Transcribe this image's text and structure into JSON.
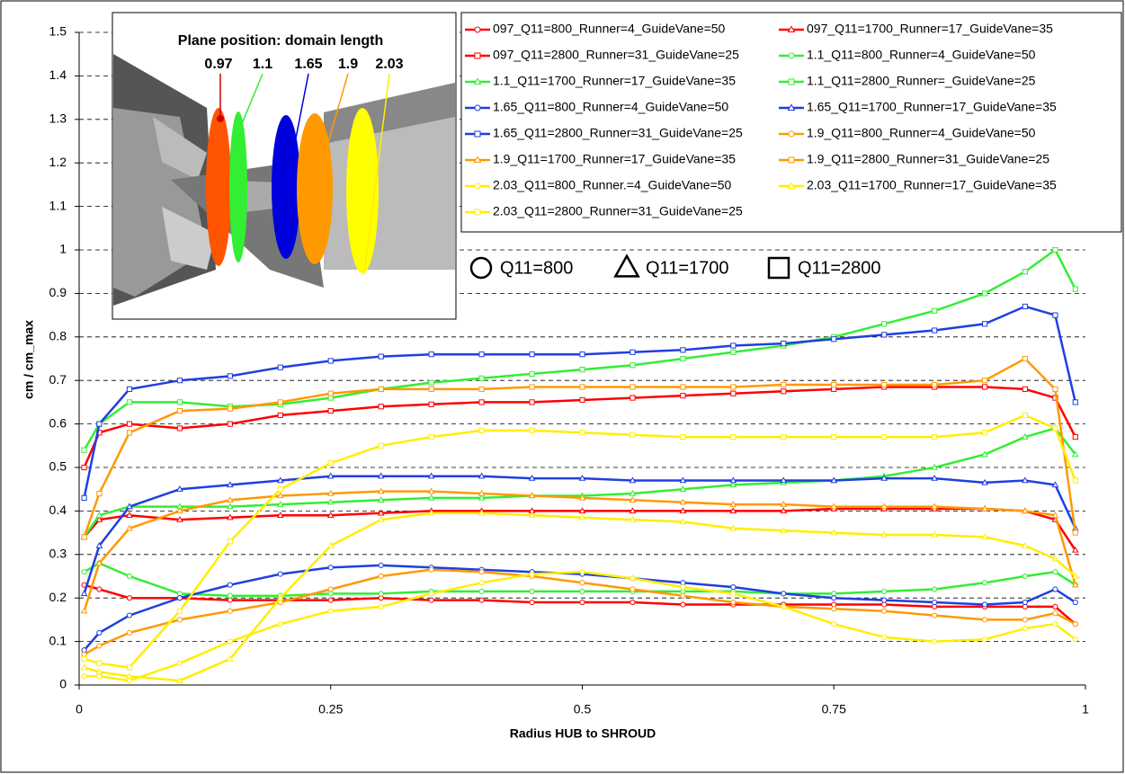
{
  "chart_data": {
    "type": "line",
    "x_label": "Radius HUB to SHROUD",
    "y_label": "cm / cm_max",
    "xlim": [
      0,
      1
    ],
    "xticks": [
      0,
      0.25,
      0.5,
      0.75,
      1
    ],
    "ylim": [
      0,
      1.5
    ],
    "yticks": [
      0,
      0.1,
      0.2,
      0.3,
      0.4,
      0.5,
      0.6,
      0.7,
      0.8,
      0.9,
      1,
      1.1,
      1.2,
      1.3,
      1.4,
      1.5
    ],
    "grid": true,
    "legend": "top-right",
    "x": [
      0.005,
      0.02,
      0.05,
      0.1,
      0.15,
      0.2,
      0.25,
      0.3,
      0.35,
      0.4,
      0.45,
      0.5,
      0.55,
      0.6,
      0.65,
      0.7,
      0.75,
      0.8,
      0.85,
      0.9,
      0.94,
      0.97,
      0.99
    ],
    "series": [
      {
        "name": "097_Q11=800_Runner=4_GuideVane=50",
        "color": "#ff0000",
        "marker": "circle",
        "values": [
          0.23,
          0.22,
          0.2,
          0.2,
          0.195,
          0.195,
          0.195,
          0.2,
          0.195,
          0.195,
          0.19,
          0.19,
          0.19,
          0.185,
          0.185,
          0.185,
          0.185,
          0.185,
          0.18,
          0.18,
          0.18,
          0.18,
          0.14
        ]
      },
      {
        "name": "097_Q11=1700_Runner=17_GuideVane=35",
        "color": "#ff0000",
        "marker": "triangle",
        "values": [
          0.34,
          0.38,
          0.39,
          0.38,
          0.385,
          0.39,
          0.39,
          0.395,
          0.4,
          0.4,
          0.4,
          0.4,
          0.4,
          0.4,
          0.4,
          0.4,
          0.405,
          0.405,
          0.405,
          0.405,
          0.4,
          0.38,
          0.31
        ]
      },
      {
        "name": "097_Q11=2800_Runner=31_GuideVane=25",
        "color": "#ff0000",
        "marker": "square",
        "values": [
          0.5,
          0.58,
          0.6,
          0.59,
          0.6,
          0.62,
          0.63,
          0.64,
          0.645,
          0.65,
          0.65,
          0.655,
          0.66,
          0.665,
          0.67,
          0.675,
          0.68,
          0.685,
          0.685,
          0.685,
          0.68,
          0.66,
          0.57
        ]
      },
      {
        "name": "1.1_Q11=800_Runner=4_GuideVane=50",
        "color": "#33ee33",
        "marker": "circle",
        "values": [
          0.26,
          0.28,
          0.25,
          0.21,
          0.205,
          0.205,
          0.21,
          0.21,
          0.215,
          0.215,
          0.215,
          0.215,
          0.215,
          0.215,
          0.215,
          0.21,
          0.21,
          0.215,
          0.22,
          0.235,
          0.25,
          0.26,
          0.23
        ]
      },
      {
        "name": "1.1_Q11=1700_Runner=17_GuideVane=35",
        "color": "#33ee33",
        "marker": "triangle",
        "values": [
          0.34,
          0.39,
          0.41,
          0.41,
          0.41,
          0.415,
          0.42,
          0.425,
          0.43,
          0.43,
          0.435,
          0.435,
          0.44,
          0.45,
          0.46,
          0.465,
          0.47,
          0.48,
          0.5,
          0.53,
          0.57,
          0.59,
          0.53
        ]
      },
      {
        "name": "1.1_Q11=2800_Runner=_GuideVane=25",
        "color": "#33ee33",
        "marker": "square",
        "values": [
          0.54,
          0.6,
          0.65,
          0.65,
          0.64,
          0.645,
          0.66,
          0.68,
          0.695,
          0.705,
          0.715,
          0.725,
          0.735,
          0.75,
          0.765,
          0.78,
          0.8,
          0.83,
          0.86,
          0.9,
          0.95,
          1.0,
          0.91
        ]
      },
      {
        "name": "1.65_Q11=800_Runner=4_GuideVane=50",
        "color": "#1f3fe0",
        "marker": "circle",
        "values": [
          0.08,
          0.12,
          0.16,
          0.2,
          0.23,
          0.255,
          0.27,
          0.275,
          0.27,
          0.265,
          0.26,
          0.255,
          0.245,
          0.235,
          0.225,
          0.21,
          0.2,
          0.195,
          0.19,
          0.185,
          0.19,
          0.22,
          0.19
        ]
      },
      {
        "name": "1.65_Q11=1700_Runner=17_GuideVane=35",
        "color": "#1f3fe0",
        "marker": "triangle",
        "values": [
          0.21,
          0.32,
          0.41,
          0.45,
          0.46,
          0.47,
          0.48,
          0.48,
          0.48,
          0.48,
          0.475,
          0.475,
          0.47,
          0.47,
          0.47,
          0.47,
          0.47,
          0.475,
          0.475,
          0.465,
          0.47,
          0.46,
          0.36
        ]
      },
      {
        "name": "1.65_Q11=2800_Runner=31_GuideVane=25",
        "color": "#1f3fe0",
        "marker": "square",
        "values": [
          0.43,
          0.6,
          0.68,
          0.7,
          0.71,
          0.73,
          0.745,
          0.755,
          0.76,
          0.76,
          0.76,
          0.76,
          0.765,
          0.77,
          0.78,
          0.785,
          0.795,
          0.805,
          0.815,
          0.83,
          0.87,
          0.85,
          0.65
        ]
      },
      {
        "name": "1.9_Q11=800_Runner=4_GuideVane=50",
        "color": "#ff9900",
        "marker": "circle",
        "values": [
          0.07,
          0.09,
          0.12,
          0.15,
          0.17,
          0.19,
          0.22,
          0.25,
          0.265,
          0.26,
          0.25,
          0.235,
          0.22,
          0.205,
          0.19,
          0.18,
          0.175,
          0.17,
          0.16,
          0.15,
          0.15,
          0.165,
          0.14
        ]
      },
      {
        "name": "1.9_Q11=1700_Runner=17_GuideVane=35",
        "color": "#ff9900",
        "marker": "triangle",
        "values": [
          0.17,
          0.28,
          0.36,
          0.4,
          0.425,
          0.435,
          0.44,
          0.445,
          0.445,
          0.44,
          0.435,
          0.43,
          0.425,
          0.42,
          0.415,
          0.415,
          0.41,
          0.41,
          0.41,
          0.405,
          0.4,
          0.39,
          0.23
        ]
      },
      {
        "name": "1.9_Q11=2800_Runner=31_GuideVane=25",
        "color": "#ff9900",
        "marker": "square",
        "values": [
          0.34,
          0.44,
          0.58,
          0.63,
          0.635,
          0.65,
          0.67,
          0.68,
          0.68,
          0.68,
          0.685,
          0.685,
          0.685,
          0.685,
          0.685,
          0.69,
          0.69,
          0.69,
          0.69,
          0.7,
          0.75,
          0.68,
          0.35
        ]
      },
      {
        "name": "2.03_Q11=800_Runner.=4_GuideVane=50",
        "color": "#ffee00",
        "marker": "circle",
        "values": [
          0.02,
          0.02,
          0.01,
          0.05,
          0.1,
          0.14,
          0.17,
          0.18,
          0.21,
          0.235,
          0.255,
          0.26,
          0.245,
          0.225,
          0.21,
          0.18,
          0.14,
          0.11,
          0.1,
          0.105,
          0.13,
          0.14,
          0.105
        ]
      },
      {
        "name": "2.03_Q11=1700_Runner=17_GuideVane=35",
        "color": "#ffee00",
        "marker": "triangle",
        "values": [
          0.04,
          0.03,
          0.02,
          0.01,
          0.06,
          0.2,
          0.32,
          0.38,
          0.395,
          0.395,
          0.39,
          0.385,
          0.38,
          0.375,
          0.36,
          0.355,
          0.35,
          0.345,
          0.345,
          0.34,
          0.32,
          0.29,
          0.25
        ]
      },
      {
        "name": "2.03_Q11=2800_Runner=31_GuideVane=25",
        "color": "#ffee00",
        "marker": "square",
        "values": [
          0.06,
          0.05,
          0.04,
          0.17,
          0.33,
          0.45,
          0.51,
          0.55,
          0.57,
          0.585,
          0.585,
          0.58,
          0.575,
          0.57,
          0.57,
          0.57,
          0.57,
          0.57,
          0.57,
          0.58,
          0.62,
          0.59,
          0.47
        ]
      }
    ],
    "marker_key": [
      {
        "marker": "circle",
        "label": "Q11=800"
      },
      {
        "marker": "triangle",
        "label": "Q11=1700"
      },
      {
        "marker": "square",
        "label": "Q11=2800"
      }
    ],
    "inset": {
      "title": "Plane position: domain length",
      "labels": [
        "0.97",
        "1.1",
        "1.65",
        "1.9",
        "2.03"
      ]
    }
  }
}
